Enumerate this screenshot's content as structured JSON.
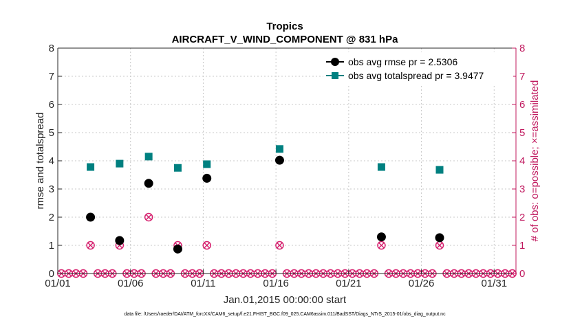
{
  "chart_data": {
    "type": "scatter",
    "title": "Tropics",
    "subtitle": "AIRCRAFT_V_WIND_COMPONENT @ 831 hPa",
    "xlabel": "Jan.01,2015 00:00:00 start",
    "ylabel": "rmse and totalspread",
    "ylabel_right": "# of obs: o=possible; ×=assimilated",
    "footer": "data file: /Users/raeder/DAI/ATM_forcXX/CAM6_setup/f.e21.FHIST_BGC.f09_025.CAM6assim.011/BadSST/Diags_NTrS_2015-01/obs_diag_output.nc",
    "xlim": [
      1,
      32.5
    ],
    "ylim": [
      0,
      8
    ],
    "ylim_right": [
      0,
      8
    ],
    "x_ticks": [
      1,
      6,
      11,
      16,
      21,
      26,
      31
    ],
    "x_tick_labels": [
      "01/01",
      "01/06",
      "01/11",
      "01/16",
      "01/21",
      "01/26",
      "01/31"
    ],
    "y_ticks": [
      0,
      1,
      2,
      3,
      4,
      5,
      6,
      7,
      8
    ],
    "y_tick_labels": [
      "0",
      "1",
      "2",
      "3",
      "4",
      "5",
      "6",
      "7",
      "8"
    ],
    "y_right_ticks": [
      0,
      1,
      2,
      3,
      4,
      5,
      6,
      7,
      8
    ],
    "y_right_tick_labels": [
      "0",
      "1",
      "2",
      "3",
      "4",
      "5",
      "6",
      "7",
      "8"
    ],
    "grid": true,
    "legend_position": "top-right",
    "colors": {
      "rmse": "#000000",
      "spread": "#008080",
      "obs": "#d6206e",
      "axis_left": "#262626",
      "axis_right": "#c0185e"
    },
    "series": [
      {
        "name": "obs avg rmse",
        "legend": "obs avg rmse pr = 2.5306",
        "marker": "circle",
        "x": [
          3.25,
          5.25,
          7.25,
          9.25,
          11.25,
          16.25,
          23.25,
          27.25
        ],
        "values": [
          2.0,
          1.17,
          3.2,
          0.87,
          3.38,
          4.02,
          1.3,
          1.27
        ]
      },
      {
        "name": "obs avg totalspread",
        "legend": "obs avg totalspread pr = 3.9477",
        "marker": "square",
        "x": [
          3.25,
          5.25,
          7.25,
          9.25,
          11.25,
          16.25,
          23.25,
          27.25
        ],
        "values": [
          3.78,
          3.9,
          4.15,
          3.75,
          3.88,
          4.42,
          3.78,
          3.68
        ]
      },
      {
        "name": "obs possible",
        "axis": "right",
        "marker": "circle-open",
        "x": [
          1.25,
          1.75,
          2.25,
          2.75,
          3.25,
          3.75,
          4.25,
          4.75,
          5.25,
          5.75,
          6.25,
          6.75,
          7.25,
          7.75,
          8.25,
          8.75,
          9.25,
          9.75,
          10.25,
          10.75,
          11.25,
          11.75,
          12.25,
          12.75,
          13.25,
          13.75,
          14.25,
          14.75,
          15.25,
          15.75,
          16.25,
          16.75,
          17.25,
          17.75,
          18.25,
          18.75,
          19.25,
          19.75,
          20.25,
          20.75,
          21.25,
          21.75,
          22.25,
          22.75,
          23.25,
          23.75,
          24.25,
          24.75,
          25.25,
          25.75,
          26.25,
          26.75,
          27.25,
          27.75,
          28.25,
          28.75,
          29.25,
          29.75,
          30.25,
          30.75,
          31.25,
          31.75,
          32.25
        ],
        "values": [
          0,
          0,
          0,
          0,
          1,
          0,
          0,
          0,
          1,
          0,
          0,
          0,
          2,
          0,
          0,
          0,
          1,
          0,
          0,
          0,
          1,
          0,
          0,
          0,
          0,
          0,
          0,
          0,
          0,
          0,
          1,
          0,
          0,
          0,
          0,
          0,
          0,
          0,
          0,
          0,
          0,
          0,
          0,
          0,
          1,
          0,
          0,
          0,
          0,
          0,
          0,
          0,
          1,
          0,
          0,
          0,
          0,
          0,
          0,
          0,
          0,
          0,
          0
        ]
      },
      {
        "name": "obs assimilated",
        "axis": "right",
        "marker": "x",
        "x": [
          1.25,
          1.75,
          2.25,
          2.75,
          3.25,
          3.75,
          4.25,
          4.75,
          5.25,
          5.75,
          6.25,
          6.75,
          7.25,
          7.75,
          8.25,
          8.75,
          9.25,
          9.75,
          10.25,
          10.75,
          11.25,
          11.75,
          12.25,
          12.75,
          13.25,
          13.75,
          14.25,
          14.75,
          15.25,
          15.75,
          16.25,
          16.75,
          17.25,
          17.75,
          18.25,
          18.75,
          19.25,
          19.75,
          20.25,
          20.75,
          21.25,
          21.75,
          22.25,
          22.75,
          23.25,
          23.75,
          24.25,
          24.75,
          25.25,
          25.75,
          26.25,
          26.75,
          27.25,
          27.75,
          28.25,
          28.75,
          29.25,
          29.75,
          30.25,
          30.75,
          31.25,
          31.75,
          32.25
        ],
        "values": [
          0,
          0,
          0,
          0,
          1,
          0,
          0,
          0,
          1,
          0,
          0,
          0,
          2,
          0,
          0,
          0,
          1,
          0,
          0,
          0,
          1,
          0,
          0,
          0,
          0,
          0,
          0,
          0,
          0,
          0,
          1,
          0,
          0,
          0,
          0,
          0,
          0,
          0,
          0,
          0,
          0,
          0,
          0,
          0,
          1,
          0,
          0,
          0,
          0,
          0,
          0,
          0,
          1,
          0,
          0,
          0,
          0,
          0,
          0,
          0,
          0,
          0,
          0
        ]
      }
    ]
  }
}
